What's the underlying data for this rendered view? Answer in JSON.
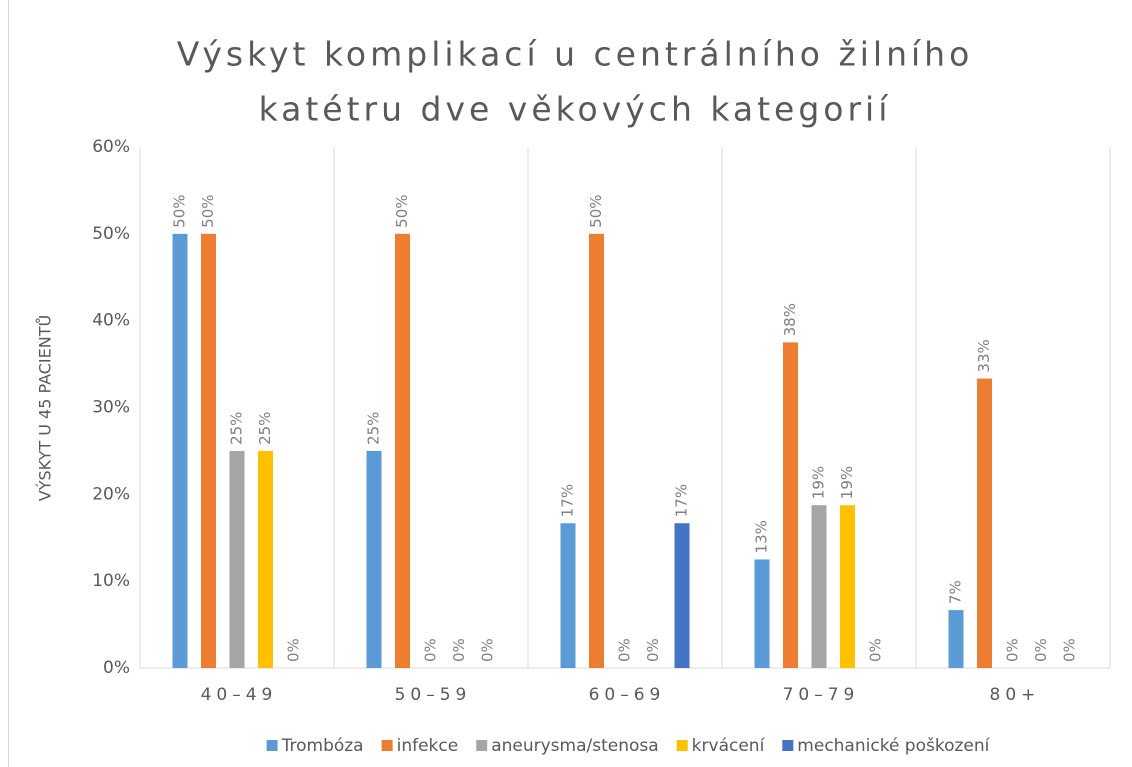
{
  "chart_data": {
    "type": "bar",
    "title": "Výskyt komplikací u centrálního žilního katétru dve věkových kategorií",
    "y_label": "VÝSKYT U 45 PACIENTŮ",
    "categories": [
      "40–49",
      "50–59",
      "60–69",
      "70–79",
      "80+"
    ],
    "series": [
      {
        "name": "Trombóza",
        "color": "#5b9bd5",
        "values": [
          50,
          25,
          16.67,
          12.5,
          6.67
        ],
        "value_labels": [
          "50%",
          "25%",
          "17%",
          "13%",
          "7%"
        ]
      },
      {
        "name": "infekce",
        "color": "#ed7d31",
        "values": [
          50,
          50,
          50,
          37.5,
          33.33
        ],
        "value_labels": [
          "50%",
          "50%",
          "50%",
          "38%",
          "33%"
        ]
      },
      {
        "name": "aneurysma/stenosa",
        "color": "#a5a5a5",
        "values": [
          25,
          0,
          0,
          18.75,
          0
        ],
        "value_labels": [
          "25%",
          "0%",
          "0%",
          "19%",
          "0%"
        ]
      },
      {
        "name": "krvácení",
        "color": "#ffc000",
        "values": [
          25,
          0,
          0,
          18.75,
          0
        ],
        "value_labels": [
          "25%",
          "0%",
          "0%",
          "19%",
          "0%"
        ]
      },
      {
        "name": "mechanické poškození",
        "color": "#4472c4",
        "values": [
          0,
          0,
          16.67,
          0,
          0
        ],
        "value_labels": [
          "0%",
          "0%",
          "17%",
          "0%",
          "0%"
        ]
      }
    ],
    "ylim": [
      0,
      60
    ],
    "yticks": [
      {
        "value": 0,
        "label": "0%"
      },
      {
        "value": 10,
        "label": "10%"
      },
      {
        "value": 20,
        "label": "20%"
      },
      {
        "value": 30,
        "label": "30%"
      },
      {
        "value": 40,
        "label": "40%"
      },
      {
        "value": 50,
        "label": "50%"
      },
      {
        "value": 60,
        "label": "60%"
      }
    ],
    "legend": "bottom"
  }
}
